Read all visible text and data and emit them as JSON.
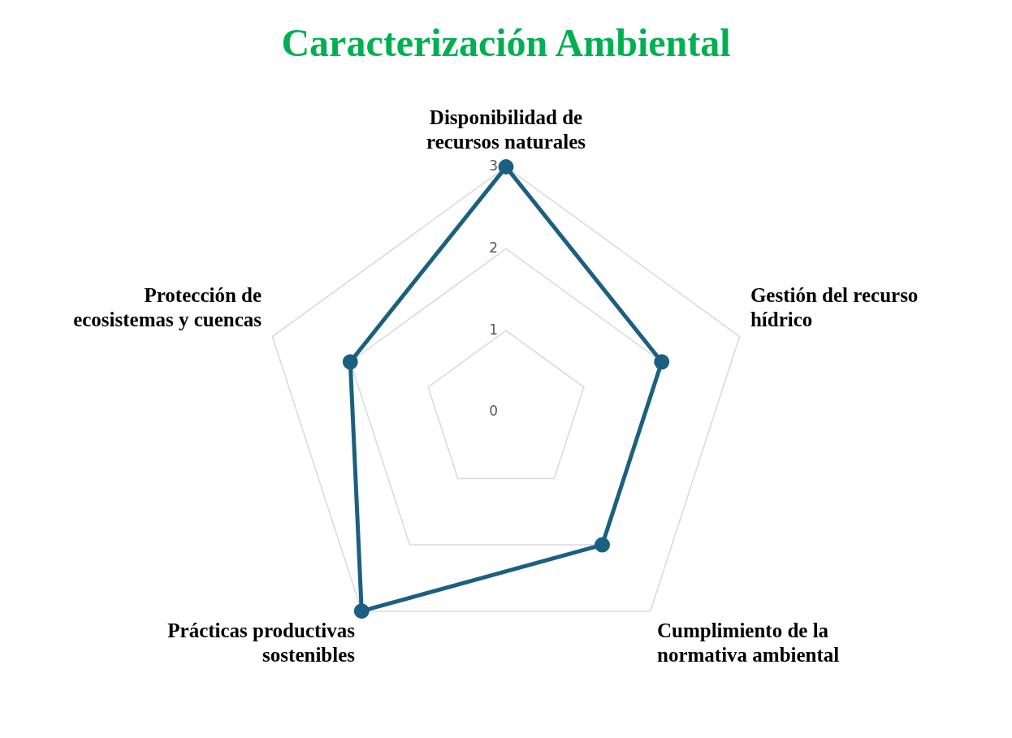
{
  "chart_data": {
    "type": "radar",
    "title": "Caracterización Ambiental",
    "categories": [
      "Disponibilidad de recursos naturales",
      "Gestión del recurso hídrico",
      "Cumplimiento de la normativa ambiental",
      "Prácticas productivas sostenibles",
      "Protección de ecosistemas y cuencas"
    ],
    "series": [
      {
        "color": "#1b6080",
        "values": [
          3,
          2,
          2,
          3,
          2
        ]
      }
    ],
    "ylim": [
      0,
      3
    ],
    "yticks": [
      0,
      1,
      2,
      3
    ],
    "grid": true,
    "legend": false,
    "marker": "circle",
    "line_style": "solid"
  }
}
